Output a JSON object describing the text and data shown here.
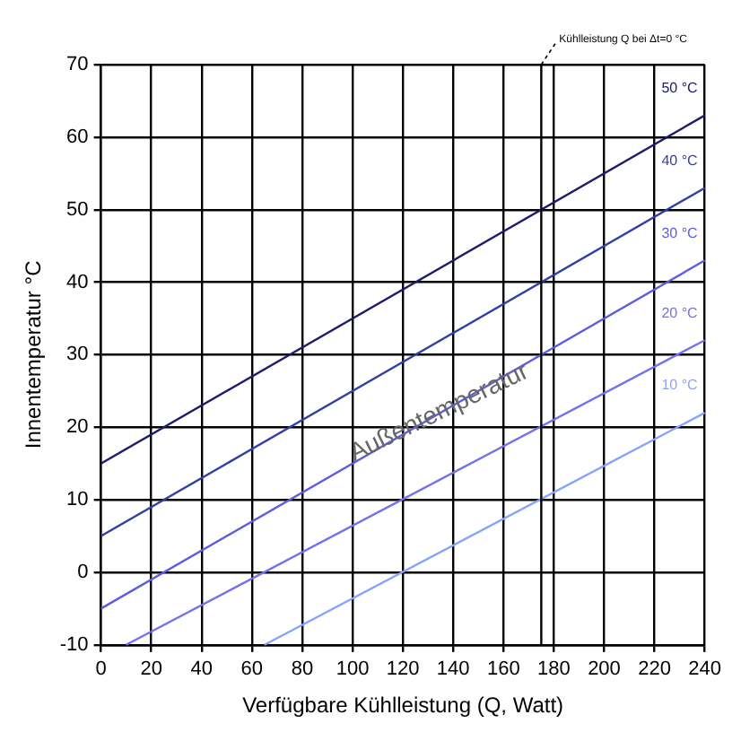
{
  "chart_data": {
    "type": "line",
    "xlabel": "Verfügbare Kühlleistung (Q, Watt)",
    "ylabel": "Innentemperatur °C",
    "xlim": [
      0,
      240
    ],
    "xticks": [
      0,
      20,
      40,
      60,
      80,
      100,
      120,
      140,
      160,
      180,
      200,
      220,
      240
    ],
    "ylim": [
      -10,
      70
    ],
    "yticks": [
      -10,
      0,
      10,
      20,
      30,
      40,
      50,
      60,
      70
    ],
    "grid": true,
    "legend": false,
    "marker": "none",
    "line_style": "solid",
    "series": [
      {
        "name": "50 °C",
        "color": "#1c1c6b",
        "x": [
          0,
          240
        ],
        "values": [
          15,
          63
        ]
      },
      {
        "name": "40 °C",
        "color": "#2f3fa6",
        "x": [
          0,
          240
        ],
        "values": [
          5,
          53
        ]
      },
      {
        "name": "30 °C",
        "color": "#5d5ddf",
        "x": [
          0,
          240
        ],
        "values": [
          -5,
          43
        ]
      },
      {
        "name": "20 °C",
        "color": "#7272ee",
        "x": [
          10,
          240
        ],
        "values": [
          -10,
          32
        ]
      },
      {
        "name": "10 °C",
        "color": "#86a4ff",
        "x": [
          65,
          240
        ],
        "values": [
          -10,
          22
        ]
      }
    ],
    "ref_lines": [
      {
        "axis": "x",
        "value": 175,
        "color": "#000000"
      }
    ],
    "annotations": [
      {
        "text": "Kühlleistung Q bei Δt=0 °C",
        "x": 175,
        "y": 70
      },
      "Außentemperatur"
    ]
  }
}
